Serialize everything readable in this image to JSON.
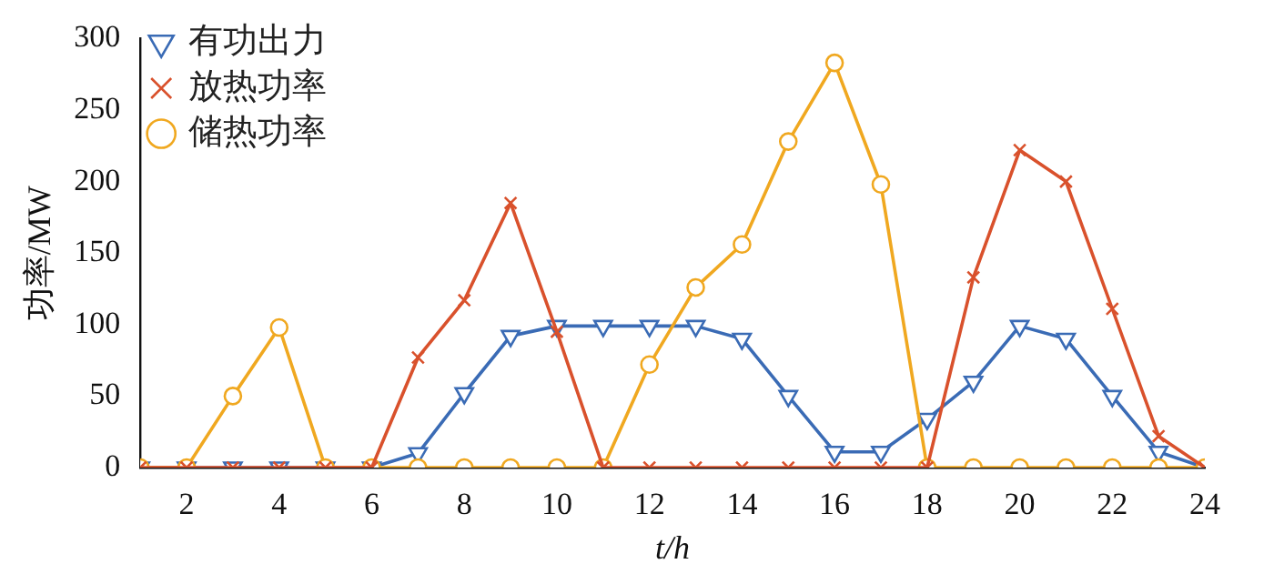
{
  "chart_data": {
    "type": "line",
    "xlabel": "t/h",
    "ylabel": "功率/MW",
    "x": [
      1,
      2,
      3,
      4,
      5,
      6,
      7,
      8,
      9,
      10,
      11,
      12,
      13,
      14,
      15,
      16,
      17,
      18,
      19,
      20,
      21,
      22,
      23,
      24
    ],
    "xlim": [
      1,
      24
    ],
    "xticks": [
      2,
      4,
      6,
      8,
      10,
      12,
      14,
      16,
      18,
      20,
      22,
      24
    ],
    "ylim": [
      0,
      300
    ],
    "yticks": [
      0,
      50,
      100,
      150,
      200,
      250,
      300
    ],
    "grid": false,
    "legend": "top left",
    "line_style": "solid",
    "series": [
      {
        "name": "有功出力",
        "color": "#3a6bb5",
        "marker": "triangle",
        "values": [
          0,
          0,
          0,
          0,
          0,
          0,
          10,
          52,
          92,
          99,
          99,
          99,
          99,
          90,
          50,
          11,
          11,
          34,
          60,
          99,
          90,
          50,
          11,
          0
        ]
      },
      {
        "name": "放热功率",
        "color": "#d9512c",
        "marker": "cross",
        "values": [
          0,
          0,
          0,
          0,
          0,
          0,
          77,
          117,
          185,
          95,
          0,
          0,
          0,
          0,
          0,
          0,
          0,
          0,
          133,
          222,
          200,
          111,
          22,
          0
        ]
      },
      {
        "name": "储热功率",
        "color": "#f0a820",
        "marker": "circle",
        "values": [
          0,
          0,
          50,
          98,
          0,
          0,
          0,
          0,
          0,
          0,
          0,
          72,
          126,
          156,
          228,
          283,
          198,
          0,
          0,
          0,
          0,
          0,
          0,
          0
        ]
      }
    ]
  }
}
